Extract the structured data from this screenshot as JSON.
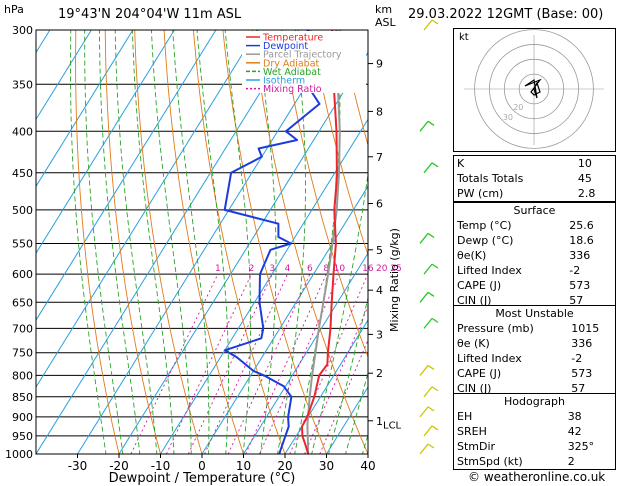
{
  "header": {
    "station": "19°43'N  204°04'W  11m  ASL",
    "date": "29.03.2022  12GMT  (Base: 00)"
  },
  "chart_data": {
    "type": "line",
    "title": "",
    "xlabel": "Dewpoint / Temperature (°C)",
    "ylabel": "hPa",
    "right_axis_label_km": "km\nASL",
    "mixing_ratio_axis_label": "Mixing Ratio (g/kg)",
    "pressure_ticks": [
      300,
      350,
      400,
      450,
      500,
      550,
      600,
      650,
      700,
      750,
      800,
      850,
      900,
      950,
      1000
    ],
    "temp_ticks": [
      -30,
      -20,
      -10,
      0,
      10,
      20,
      30,
      40
    ],
    "xlim": [
      -40,
      40
    ],
    "ylim": [
      1000,
      300
    ],
    "km_ticks": [
      {
        "p": 910,
        "label": "1"
      },
      {
        "p": 795,
        "label": "2"
      },
      {
        "p": 712,
        "label": "3"
      },
      {
        "p": 628,
        "label": "4"
      },
      {
        "p": 560,
        "label": "5"
      },
      {
        "p": 491,
        "label": "6"
      },
      {
        "p": 430,
        "label": "7"
      },
      {
        "p": 378,
        "label": "8"
      },
      {
        "p": 330,
        "label": "9"
      }
    ],
    "lcl": {
      "p": 920,
      "label": "LCL"
    },
    "mixing_ratio_labels": [
      "1",
      "2",
      "3",
      "4",
      "6",
      "8",
      "10",
      "16",
      "20",
      "25"
    ],
    "legend": [
      {
        "name": "Temperature",
        "color": "#e8282c"
      },
      {
        "name": "Dewpoint",
        "color": "#1a3cdc"
      },
      {
        "name": "Parcel Trajectory",
        "color": "#999999"
      },
      {
        "name": "Dry Adiabat",
        "color": "#e07b1a"
      },
      {
        "name": "Wet Adiabat",
        "color": "#28a428"
      },
      {
        "name": "Isotherm",
        "color": "#2aa0e0"
      },
      {
        "name": "Mixing Ratio",
        "color": "#d01aa0"
      }
    ],
    "series": [
      {
        "name": "Temperature",
        "color": "#e8282c",
        "points": [
          [
            1000,
            25.6
          ],
          [
            975,
            23.6
          ],
          [
            950,
            21.5
          ],
          [
            925,
            20
          ],
          [
            900,
            19.8
          ],
          [
            850,
            18.5
          ],
          [
            800,
            16.5
          ],
          [
            775,
            16.8
          ],
          [
            750,
            15.2
          ],
          [
            700,
            12.2
          ],
          [
            650,
            8.6
          ],
          [
            600,
            4.8
          ],
          [
            550,
            0.8
          ],
          [
            500,
            -4.6
          ],
          [
            470,
            -7.4
          ],
          [
            450,
            -9.5
          ],
          [
            400,
            -15.8
          ],
          [
            350,
            -23.5
          ],
          [
            300,
            -32
          ]
        ]
      },
      {
        "name": "Dewpoint",
        "color": "#1a3cdc",
        "points": [
          [
            1000,
            18.6
          ],
          [
            950,
            17.4
          ],
          [
            925,
            16.8
          ],
          [
            900,
            15.2
          ],
          [
            850,
            13
          ],
          [
            825,
            9.6
          ],
          [
            800,
            3.2
          ],
          [
            790,
            0
          ],
          [
            760,
            -6
          ],
          [
            745,
            -10
          ],
          [
            720,
            -3
          ],
          [
            700,
            -4
          ],
          [
            650,
            -8.8
          ],
          [
            600,
            -12.9
          ],
          [
            560,
            -14
          ],
          [
            550,
            -10
          ],
          [
            540,
            -14
          ],
          [
            520,
            -16
          ],
          [
            500,
            -31
          ],
          [
            450,
            -35
          ],
          [
            430,
            -30
          ],
          [
            420,
            -32
          ],
          [
            410,
            -24
          ],
          [
            400,
            -28
          ],
          [
            370,
            -24
          ],
          [
            350,
            -30
          ],
          [
            320,
            -28
          ],
          [
            300,
            -38
          ]
        ]
      },
      {
        "name": "Parcel Trajectory",
        "color": "#999999",
        "points": [
          [
            1000,
            25.6
          ],
          [
            920,
            21
          ],
          [
            850,
            17.4
          ],
          [
            800,
            14.8
          ],
          [
            750,
            12.2
          ],
          [
            700,
            9.4
          ],
          [
            650,
            6.6
          ],
          [
            600,
            3.5
          ],
          [
            550,
            0
          ],
          [
            500,
            -4
          ],
          [
            450,
            -9
          ],
          [
            400,
            -15
          ],
          [
            350,
            -22.5
          ],
          [
            300,
            -31
          ]
        ]
      }
    ],
    "wind_barbs": [
      {
        "p": 1000,
        "color": "#c8c800"
      },
      {
        "p": 950,
        "color": "#c8c800"
      },
      {
        "p": 900,
        "color": "#c8c800"
      },
      {
        "p": 850,
        "color": "#c8c800"
      },
      {
        "p": 800,
        "color": "#c8c800"
      },
      {
        "p": 700,
        "color": "#28c828"
      },
      {
        "p": 650,
        "color": "#28c828"
      },
      {
        "p": 600,
        "color": "#28c828"
      },
      {
        "p": 550,
        "color": "#28c828"
      },
      {
        "p": 450,
        "color": "#28c828"
      },
      {
        "p": 400,
        "color": "#28c828"
      },
      {
        "p": 300,
        "color": "#c8c800"
      }
    ],
    "hodograph": {
      "label": "kt",
      "rings_kt": [
        10,
        20,
        30,
        40
      ],
      "ring_labels": [
        "10",
        "20",
        "30",
        "40"
      ],
      "track_uv": [
        [
          0,
          0
        ],
        [
          1,
          2
        ],
        [
          2,
          -1
        ],
        [
          0,
          -2
        ],
        [
          -1,
          -1
        ],
        [
          2,
          3
        ],
        [
          -3,
          1
        ],
        [
          0,
          3
        ],
        [
          1,
          -3
        ],
        [
          0,
          0
        ]
      ]
    }
  },
  "indices": [
    {
      "label": "K",
      "value": "10"
    },
    {
      "label": "Totals Totals",
      "value": "45"
    },
    {
      "label": "PW (cm)",
      "value": "2.8"
    }
  ],
  "surface": {
    "title": "Surface",
    "rows": [
      {
        "label": "Temp (°C)",
        "value": "25.6"
      },
      {
        "label": "Dewp (°C)",
        "value": "18.6"
      },
      {
        "label": "θe(K)",
        "value": "336"
      },
      {
        "label": "Lifted Index",
        "value": "-2"
      },
      {
        "label": "CAPE (J)",
        "value": "573"
      },
      {
        "label": "CIN (J)",
        "value": "57"
      }
    ]
  },
  "most_unstable": {
    "title": "Most Unstable",
    "rows": [
      {
        "label": "Pressure (mb)",
        "value": "1015"
      },
      {
        "label": "θe (K)",
        "value": "336"
      },
      {
        "label": "Lifted Index",
        "value": "-2"
      },
      {
        "label": "CAPE (J)",
        "value": "573"
      },
      {
        "label": "CIN (J)",
        "value": "57"
      }
    ]
  },
  "hodograph_table": {
    "title": "Hodograph",
    "rows": [
      {
        "label": "EH",
        "value": "38"
      },
      {
        "label": "SREH",
        "value": "42"
      },
      {
        "label": "StmDir",
        "value": "325°"
      },
      {
        "label": "StmSpd (kt)",
        "value": "2"
      }
    ]
  },
  "footer": "© weatheronline.co.uk"
}
